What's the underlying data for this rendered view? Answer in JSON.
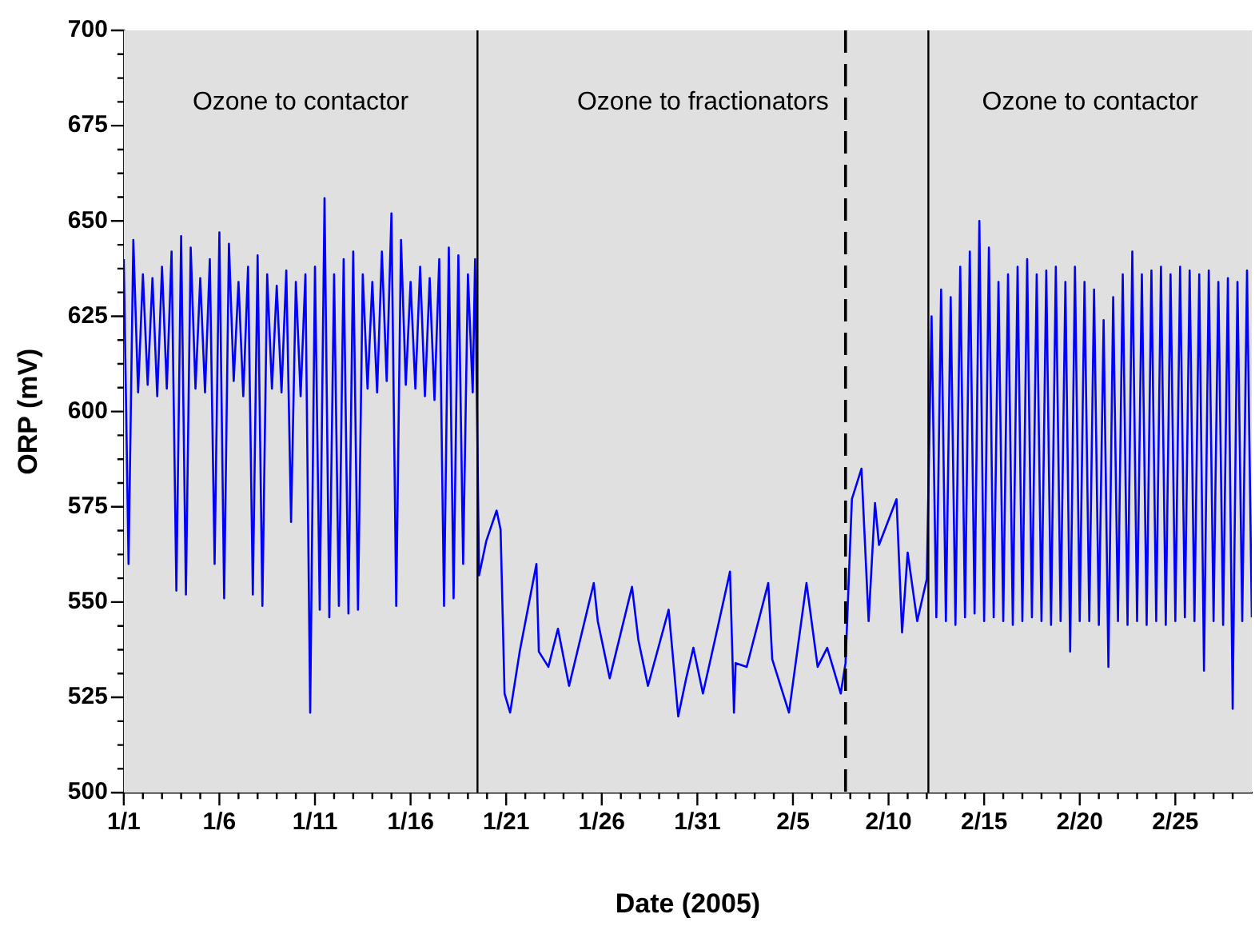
{
  "chart_data": {
    "type": "line",
    "xlabel": "Date (2005)",
    "ylabel": "ORP (mV)",
    "legend": false,
    "grid": false,
    "marker": "none",
    "line_style": "solid",
    "xlim": [
      "2005-01-01",
      "2005-03-01"
    ],
    "ylim": [
      500,
      700
    ],
    "xticks": [
      {
        "value": "2005-01-01",
        "label": "1/1"
      },
      {
        "value": "2005-01-02",
        "label": null
      },
      {
        "value": "2005-01-03",
        "label": null
      },
      {
        "value": "2005-01-04",
        "label": null
      },
      {
        "value": "2005-01-05",
        "label": null
      },
      {
        "value": "2005-01-06",
        "label": "1/6"
      },
      {
        "value": "2005-01-07",
        "label": null
      },
      {
        "value": "2005-01-08",
        "label": null
      },
      {
        "value": "2005-01-09",
        "label": null
      },
      {
        "value": "2005-01-10",
        "label": null
      },
      {
        "value": "2005-01-11",
        "label": "1/11"
      },
      {
        "value": "2005-01-12",
        "label": null
      },
      {
        "value": "2005-01-13",
        "label": null
      },
      {
        "value": "2005-01-14",
        "label": null
      },
      {
        "value": "2005-01-15",
        "label": null
      },
      {
        "value": "2005-01-16",
        "label": "1/16"
      },
      {
        "value": "2005-01-17",
        "label": null
      },
      {
        "value": "2005-01-18",
        "label": null
      },
      {
        "value": "2005-01-19",
        "label": null
      },
      {
        "value": "2005-01-20",
        "label": null
      },
      {
        "value": "2005-01-21",
        "label": "1/21"
      },
      {
        "value": "2005-01-22",
        "label": null
      },
      {
        "value": "2005-01-23",
        "label": null
      },
      {
        "value": "2005-01-24",
        "label": null
      },
      {
        "value": "2005-01-25",
        "label": null
      },
      {
        "value": "2005-01-26",
        "label": "1/26"
      },
      {
        "value": "2005-01-27",
        "label": null
      },
      {
        "value": "2005-01-28",
        "label": null
      },
      {
        "value": "2005-01-29",
        "label": null
      },
      {
        "value": "2005-01-30",
        "label": null
      },
      {
        "value": "2005-01-31",
        "label": "1/31"
      },
      {
        "value": "2005-02-01",
        "label": null
      },
      {
        "value": "2005-02-02",
        "label": null
      },
      {
        "value": "2005-02-03",
        "label": null
      },
      {
        "value": "2005-02-04",
        "label": null
      },
      {
        "value": "2005-02-05",
        "label": "2/5"
      },
      {
        "value": "2005-02-06",
        "label": null
      },
      {
        "value": "2005-02-07",
        "label": null
      },
      {
        "value": "2005-02-08",
        "label": null
      },
      {
        "value": "2005-02-09",
        "label": null
      },
      {
        "value": "2005-02-10",
        "label": "2/10"
      },
      {
        "value": "2005-02-11",
        "label": null
      },
      {
        "value": "2005-02-12",
        "label": null
      },
      {
        "value": "2005-02-13",
        "label": null
      },
      {
        "value": "2005-02-14",
        "label": null
      },
      {
        "value": "2005-02-15",
        "label": "2/15"
      },
      {
        "value": "2005-02-16",
        "label": null
      },
      {
        "value": "2005-02-17",
        "label": null
      },
      {
        "value": "2005-02-18",
        "label": null
      },
      {
        "value": "2005-02-19",
        "label": null
      },
      {
        "value": "2005-02-20",
        "label": "2/20"
      },
      {
        "value": "2005-02-21",
        "label": null
      },
      {
        "value": "2005-02-22",
        "label": null
      },
      {
        "value": "2005-02-23",
        "label": null
      },
      {
        "value": "2005-02-24",
        "label": null
      },
      {
        "value": "2005-02-25",
        "label": "2/25"
      },
      {
        "value": "2005-02-26",
        "label": null
      },
      {
        "value": "2005-02-27",
        "label": null
      },
      {
        "value": "2005-02-28",
        "label": null
      }
    ],
    "yticks": [
      500,
      {
        "value": 506.25,
        "label": null
      },
      {
        "value": 512.5,
        "label": null
      },
      {
        "value": 518.75,
        "label": null
      },
      525,
      {
        "value": 531.25,
        "label": null
      },
      {
        "value": 537.5,
        "label": null
      },
      {
        "value": 543.75,
        "label": null
      },
      550,
      {
        "value": 556.25,
        "label": null
      },
      {
        "value": 562.5,
        "label": null
      },
      {
        "value": 568.75,
        "label": null
      },
      575,
      {
        "value": 581.25,
        "label": null
      },
      {
        "value": 587.5,
        "label": null
      },
      {
        "value": 593.75,
        "label": null
      },
      600,
      {
        "value": 606.25,
        "label": null
      },
      {
        "value": 612.5,
        "label": null
      },
      {
        "value": 618.75,
        "label": null
      },
      625,
      {
        "value": 631.25,
        "label": null
      },
      {
        "value": 637.5,
        "label": null
      },
      {
        "value": 643.75,
        "label": null
      },
      650,
      {
        "value": 656.25,
        "label": null
      },
      {
        "value": 662.5,
        "label": null
      },
      {
        "value": 668.75,
        "label": null
      },
      675,
      {
        "value": 681.25,
        "label": null
      },
      {
        "value": 687.5,
        "label": null
      },
      {
        "value": 693.75,
        "label": null
      },
      700
    ],
    "bands": [
      {
        "axis": "x",
        "from": "2005-01-01",
        "to": "2005-01-19T12:00",
        "label": "Ozone to contactor",
        "color": "#e0e0e0"
      },
      {
        "axis": "x",
        "from": "2005-01-19T12:00",
        "to": "2005-02-12T02:00",
        "label": "Ozone to fractionators",
        "color": "#e0e0e0"
      },
      {
        "axis": "x",
        "from": "2005-02-12T02:00",
        "to": "2005-03-01",
        "label": "Ozone to contactor",
        "color": "#e0e0e0"
      }
    ],
    "ref_lines": [
      {
        "axis": "x",
        "value": "2005-01-19T12:00",
        "color": "#000000",
        "line_style": "solid"
      },
      {
        "axis": "x",
        "value": "2005-02-07T18:00",
        "color": "#000000",
        "line_style": "dashed"
      },
      {
        "axis": "x",
        "value": "2005-02-12T02:00",
        "color": "#000000",
        "line_style": "solid"
      }
    ],
    "series": [
      {
        "color": "#0000ff",
        "x": [
          "2005-01-01T00:00",
          "2005-01-01T06:00",
          "2005-01-01T12:00",
          "2005-01-01T18:00",
          "2005-01-02T00:00",
          "2005-01-02T06:00",
          "2005-01-02T12:00",
          "2005-01-02T18:00",
          "2005-01-03T00:00",
          "2005-01-03T06:00",
          "2005-01-03T12:00",
          "2005-01-03T18:00",
          "2005-01-04T00:00",
          "2005-01-04T06:00",
          "2005-01-04T12:00",
          "2005-01-04T18:00",
          "2005-01-05T00:00",
          "2005-01-05T06:00",
          "2005-01-05T12:00",
          "2005-01-05T18:00",
          "2005-01-06T00:00",
          "2005-01-06T06:00",
          "2005-01-06T12:00",
          "2005-01-06T18:00",
          "2005-01-07T00:00",
          "2005-01-07T06:00",
          "2005-01-07T12:00",
          "2005-01-07T18:00",
          "2005-01-08T00:00",
          "2005-01-08T06:00",
          "2005-01-08T12:00",
          "2005-01-08T18:00",
          "2005-01-09T00:00",
          "2005-01-09T06:00",
          "2005-01-09T12:00",
          "2005-01-09T18:00",
          "2005-01-10T00:00",
          "2005-01-10T06:00",
          "2005-01-10T12:00",
          "2005-01-10T18:00",
          "2005-01-11T00:00",
          "2005-01-11T06:00",
          "2005-01-11T12:00",
          "2005-01-11T18:00",
          "2005-01-12T00:00",
          "2005-01-12T06:00",
          "2005-01-12T12:00",
          "2005-01-12T18:00",
          "2005-01-13T00:00",
          "2005-01-13T06:00",
          "2005-01-13T12:00",
          "2005-01-13T18:00",
          "2005-01-14T00:00",
          "2005-01-14T06:00",
          "2005-01-14T12:00",
          "2005-01-14T18:00",
          "2005-01-15T00:00",
          "2005-01-15T06:00",
          "2005-01-15T12:00",
          "2005-01-15T18:00",
          "2005-01-16T00:00",
          "2005-01-16T06:00",
          "2005-01-16T12:00",
          "2005-01-16T18:00",
          "2005-01-17T00:00",
          "2005-01-17T06:00",
          "2005-01-17T12:00",
          "2005-01-17T18:00",
          "2005-01-18T00:00",
          "2005-01-18T06:00",
          "2005-01-18T12:00",
          "2005-01-18T18:00",
          "2005-01-19T00:00",
          "2005-01-19T06:00",
          "2005-01-19T09:00",
          "2005-01-19T14:00",
          "2005-01-19T23:00",
          "2005-01-20T12:00",
          "2005-01-20T17:00",
          "2005-01-20T22:00",
          "2005-01-21T05:00",
          "2005-01-21T17:00",
          "2005-01-22T14:00",
          "2005-01-22T17:00",
          "2005-01-23T05:00",
          "2005-01-23T17:00",
          "2005-01-24T07:00",
          "2005-01-25T14:00",
          "2005-01-25T19:00",
          "2005-01-26T10:00",
          "2005-01-27T14:00",
          "2005-01-27T22:00",
          "2005-01-28T10:00",
          "2005-01-29T12:00",
          "2005-01-30T00:00",
          "2005-01-30T10:00",
          "2005-01-30T19:00",
          "2005-01-31T07:00",
          "2005-01-31T22:00",
          "2005-02-01T17:00",
          "2005-02-01T22:00",
          "2005-02-02T00:00",
          "2005-02-02T14:00",
          "2005-02-03T17:00",
          "2005-02-03T22:00",
          "2005-02-04T19:00",
          "2005-02-05T17:00",
          "2005-02-06T07:00",
          "2005-02-06T19:00",
          "2005-02-07T12:00",
          "2005-02-07T18:00",
          "2005-02-08T02:00",
          "2005-02-08T14:00",
          "2005-02-08T23:00",
          "2005-02-09T07:00",
          "2005-02-09T12:00",
          "2005-02-10T10:00",
          "2005-02-10T17:00",
          "2005-02-11T00:00",
          "2005-02-11T12:00",
          "2005-02-12T00:00",
          "2005-02-12T06:00",
          "2005-02-12T12:00",
          "2005-02-12T18:00",
          "2005-02-13T00:00",
          "2005-02-13T06:00",
          "2005-02-13T12:00",
          "2005-02-13T18:00",
          "2005-02-14T00:00",
          "2005-02-14T06:00",
          "2005-02-14T12:00",
          "2005-02-14T18:00",
          "2005-02-15T00:00",
          "2005-02-15T06:00",
          "2005-02-15T12:00",
          "2005-02-15T18:00",
          "2005-02-16T00:00",
          "2005-02-16T06:00",
          "2005-02-16T12:00",
          "2005-02-16T18:00",
          "2005-02-17T00:00",
          "2005-02-17T06:00",
          "2005-02-17T12:00",
          "2005-02-17T18:00",
          "2005-02-18T00:00",
          "2005-02-18T06:00",
          "2005-02-18T12:00",
          "2005-02-18T18:00",
          "2005-02-19T00:00",
          "2005-02-19T06:00",
          "2005-02-19T12:00",
          "2005-02-19T18:00",
          "2005-02-20T00:00",
          "2005-02-20T06:00",
          "2005-02-20T12:00",
          "2005-02-20T18:00",
          "2005-02-21T00:00",
          "2005-02-21T06:00",
          "2005-02-21T12:00",
          "2005-02-21T18:00",
          "2005-02-22T00:00",
          "2005-02-22T06:00",
          "2005-02-22T12:00",
          "2005-02-22T18:00",
          "2005-02-23T00:00",
          "2005-02-23T06:00",
          "2005-02-23T12:00",
          "2005-02-23T18:00",
          "2005-02-24T00:00",
          "2005-02-24T06:00",
          "2005-02-24T12:00",
          "2005-02-24T18:00",
          "2005-02-25T00:00",
          "2005-02-25T06:00",
          "2005-02-25T12:00",
          "2005-02-25T18:00",
          "2005-02-26T00:00",
          "2005-02-26T06:00",
          "2005-02-26T12:00",
          "2005-02-26T18:00",
          "2005-02-27T00:00",
          "2005-02-27T06:00",
          "2005-02-27T12:00",
          "2005-02-27T18:00",
          "2005-02-28T00:00",
          "2005-02-28T06:00",
          "2005-02-28T12:00",
          "2005-02-28T18:00",
          "2005-03-01T00:00"
        ],
        "values": [
          640,
          560,
          645,
          605,
          636,
          607,
          635,
          604,
          638,
          606,
          642,
          553,
          646,
          552,
          643,
          606,
          635,
          605,
          640,
          560,
          647,
          551,
          644,
          608,
          634,
          604,
          638,
          552,
          641,
          549,
          636,
          606,
          633,
          605,
          637,
          571,
          634,
          604,
          636,
          521,
          638,
          548,
          656,
          546,
          636,
          549,
          640,
          547,
          642,
          548,
          636,
          606,
          634,
          605,
          642,
          608,
          652,
          549,
          645,
          607,
          634,
          606,
          638,
          604,
          635,
          603,
          640,
          549,
          643,
          551,
          641,
          560,
          636,
          605,
          640,
          557,
          566,
          574,
          569,
          526,
          521,
          537,
          560,
          537,
          533,
          543,
          528,
          555,
          545,
          530,
          554,
          540,
          528,
          548,
          520,
          530,
          538,
          526,
          540,
          558,
          521,
          534,
          533,
          555,
          535,
          521,
          555,
          533,
          538,
          526,
          534,
          577,
          585,
          545,
          576,
          565,
          577,
          542,
          563,
          545,
          556,
          625,
          546,
          632,
          545,
          630,
          544,
          638,
          546,
          642,
          547,
          650,
          545,
          643,
          546,
          634,
          545,
          636,
          544,
          638,
          545,
          640,
          546,
          636,
          545,
          637,
          544,
          638,
          545,
          634,
          537,
          638,
          545,
          634,
          545,
          632,
          544,
          624,
          533,
          630,
          545,
          636,
          544,
          642,
          545,
          636,
          544,
          637,
          545,
          638,
          544,
          636,
          545,
          638,
          546,
          637,
          545,
          636,
          532,
          637,
          545,
          634,
          544,
          635,
          522,
          634,
          545,
          637,
          546
        ]
      }
    ]
  }
}
